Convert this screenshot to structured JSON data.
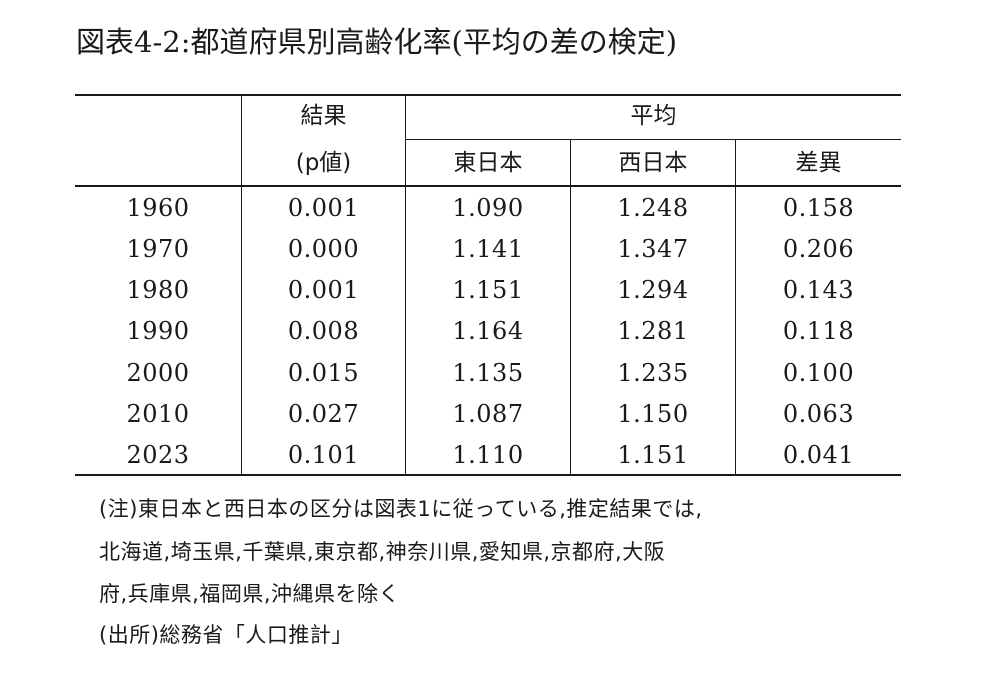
{
  "title": "図表4-2:都道府県別高齢化率(平均の差の検定)",
  "table": {
    "header": {
      "result_label": "結果",
      "result_sub": "(p値)",
      "mean_label": "平均",
      "east": "東日本",
      "west": "西日本",
      "diff": "差異"
    },
    "rows": [
      {
        "year": "1960",
        "p": "0.001",
        "east": "1.090",
        "west": "1.248",
        "diff": "0.158"
      },
      {
        "year": "1970",
        "p": "0.000",
        "east": "1.141",
        "west": "1.347",
        "diff": "0.206"
      },
      {
        "year": "1980",
        "p": "0.001",
        "east": "1.151",
        "west": "1.294",
        "diff": "0.143"
      },
      {
        "year": "1990",
        "p": "0.008",
        "east": "1.164",
        "west": "1.281",
        "diff": "0.118"
      },
      {
        "year": "2000",
        "p": "0.015",
        "east": "1.135",
        "west": "1.235",
        "diff": "0.100"
      },
      {
        "year": "2010",
        "p": "0.027",
        "east": "1.087",
        "west": "1.150",
        "diff": "0.063"
      },
      {
        "year": "2023",
        "p": "0.101",
        "east": "1.110",
        "west": "1.151",
        "diff": "0.041"
      }
    ]
  },
  "notes": {
    "line1": "(注)東日本と西日本の区分は図表1に従っている,推定結果では,",
    "line2": "北海道,埼玉県,千葉県,東京都,神奈川県,愛知県,京都府,大阪",
    "line3": "府,兵庫県,福岡県,沖縄県を除く",
    "source": "(出所)総務省「人口推計」"
  }
}
